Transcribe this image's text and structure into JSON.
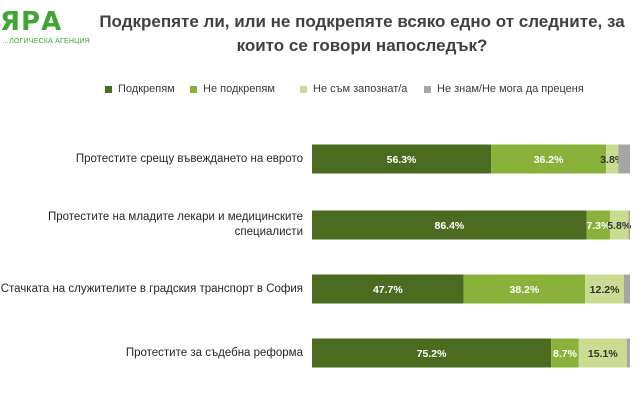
{
  "logo": {
    "name": "ЯРА",
    "tagline": "…ЛОГИЧЕСКА АГЕНЦИЯ"
  },
  "chart_data": {
    "type": "bar",
    "orientation": "horizontal",
    "stacked": true,
    "title": "Подкрепяте ли, или не подкрепяте всяко едно от следните, за които се говори напоследък?",
    "legend_position": "top",
    "grid": false,
    "categories": [
      "Протестите срещу въвеждането на еврото",
      "Протестите на младите лекари и медицинските специалисти",
      "Стачката на служителите в градския транспорт в София",
      "Протестите за съдебна реформа"
    ],
    "series": [
      {
        "name": "Подкрепям",
        "color": "#4a6b20",
        "values": [
          56.3,
          86.4,
          47.7,
          75.2
        ],
        "labels": [
          "56.3%",
          "86.4%",
          "47.7%",
          "75.2%"
        ]
      },
      {
        "name": "Не подкрепям",
        "color": "#8ab23a",
        "values": [
          36.2,
          7.3,
          38.2,
          8.7
        ],
        "labels": [
          "36.2%",
          "7.3%",
          "38.2%",
          "8.7%"
        ]
      },
      {
        "name": "Не съм запознат/а",
        "color": "#c9dc92",
        "values": [
          3.8,
          5.8,
          12.2,
          15.1
        ],
        "labels": [
          "3.8%",
          "5.8%",
          "12.2%",
          "15.1%"
        ]
      },
      {
        "name": "Не знам/Не мога да преценя",
        "color": "#a6a6a6",
        "values": [
          3.7,
          0.5,
          1.9,
          1.0
        ],
        "labels": [
          "",
          "",
          "",
          ""
        ]
      }
    ]
  }
}
